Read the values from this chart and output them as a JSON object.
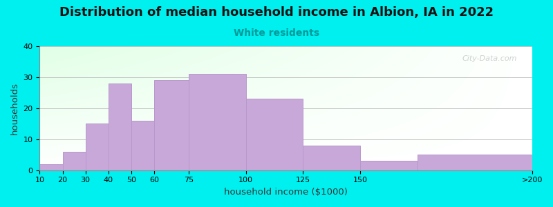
{
  "title": "Distribution of median household income in Albion, IA in 2022",
  "subtitle": "White residents",
  "xlabel": "household income ($1000)",
  "ylabel": "households",
  "bar_edges": [
    10,
    20,
    30,
    40,
    50,
    60,
    75,
    100,
    125,
    150,
    175,
    225
  ],
  "bar_heights": [
    2,
    6,
    15,
    28,
    16,
    29,
    31,
    23,
    8,
    3,
    5
  ],
  "bar_color": "#C8A8D8",
  "bar_edgecolor": "#B898CC",
  "background_color": "#00EFEF",
  "ylim": [
    0,
    40
  ],
  "xlim": [
    10,
    225
  ],
  "yticks": [
    0,
    10,
    20,
    30,
    40
  ],
  "xtick_positions": [
    10,
    20,
    30,
    40,
    50,
    60,
    75,
    100,
    125,
    150,
    225
  ],
  "xtick_labels": [
    "10",
    "20",
    "30",
    "40",
    "50",
    "60",
    "75",
    "100",
    "125",
    "150",
    ">200"
  ],
  "title_fontsize": 13,
  "subtitle_fontsize": 10,
  "subtitle_color": "#009999",
  "watermark": "City-Data.com",
  "figsize": [
    8.0,
    3.0
  ],
  "dpi": 100
}
